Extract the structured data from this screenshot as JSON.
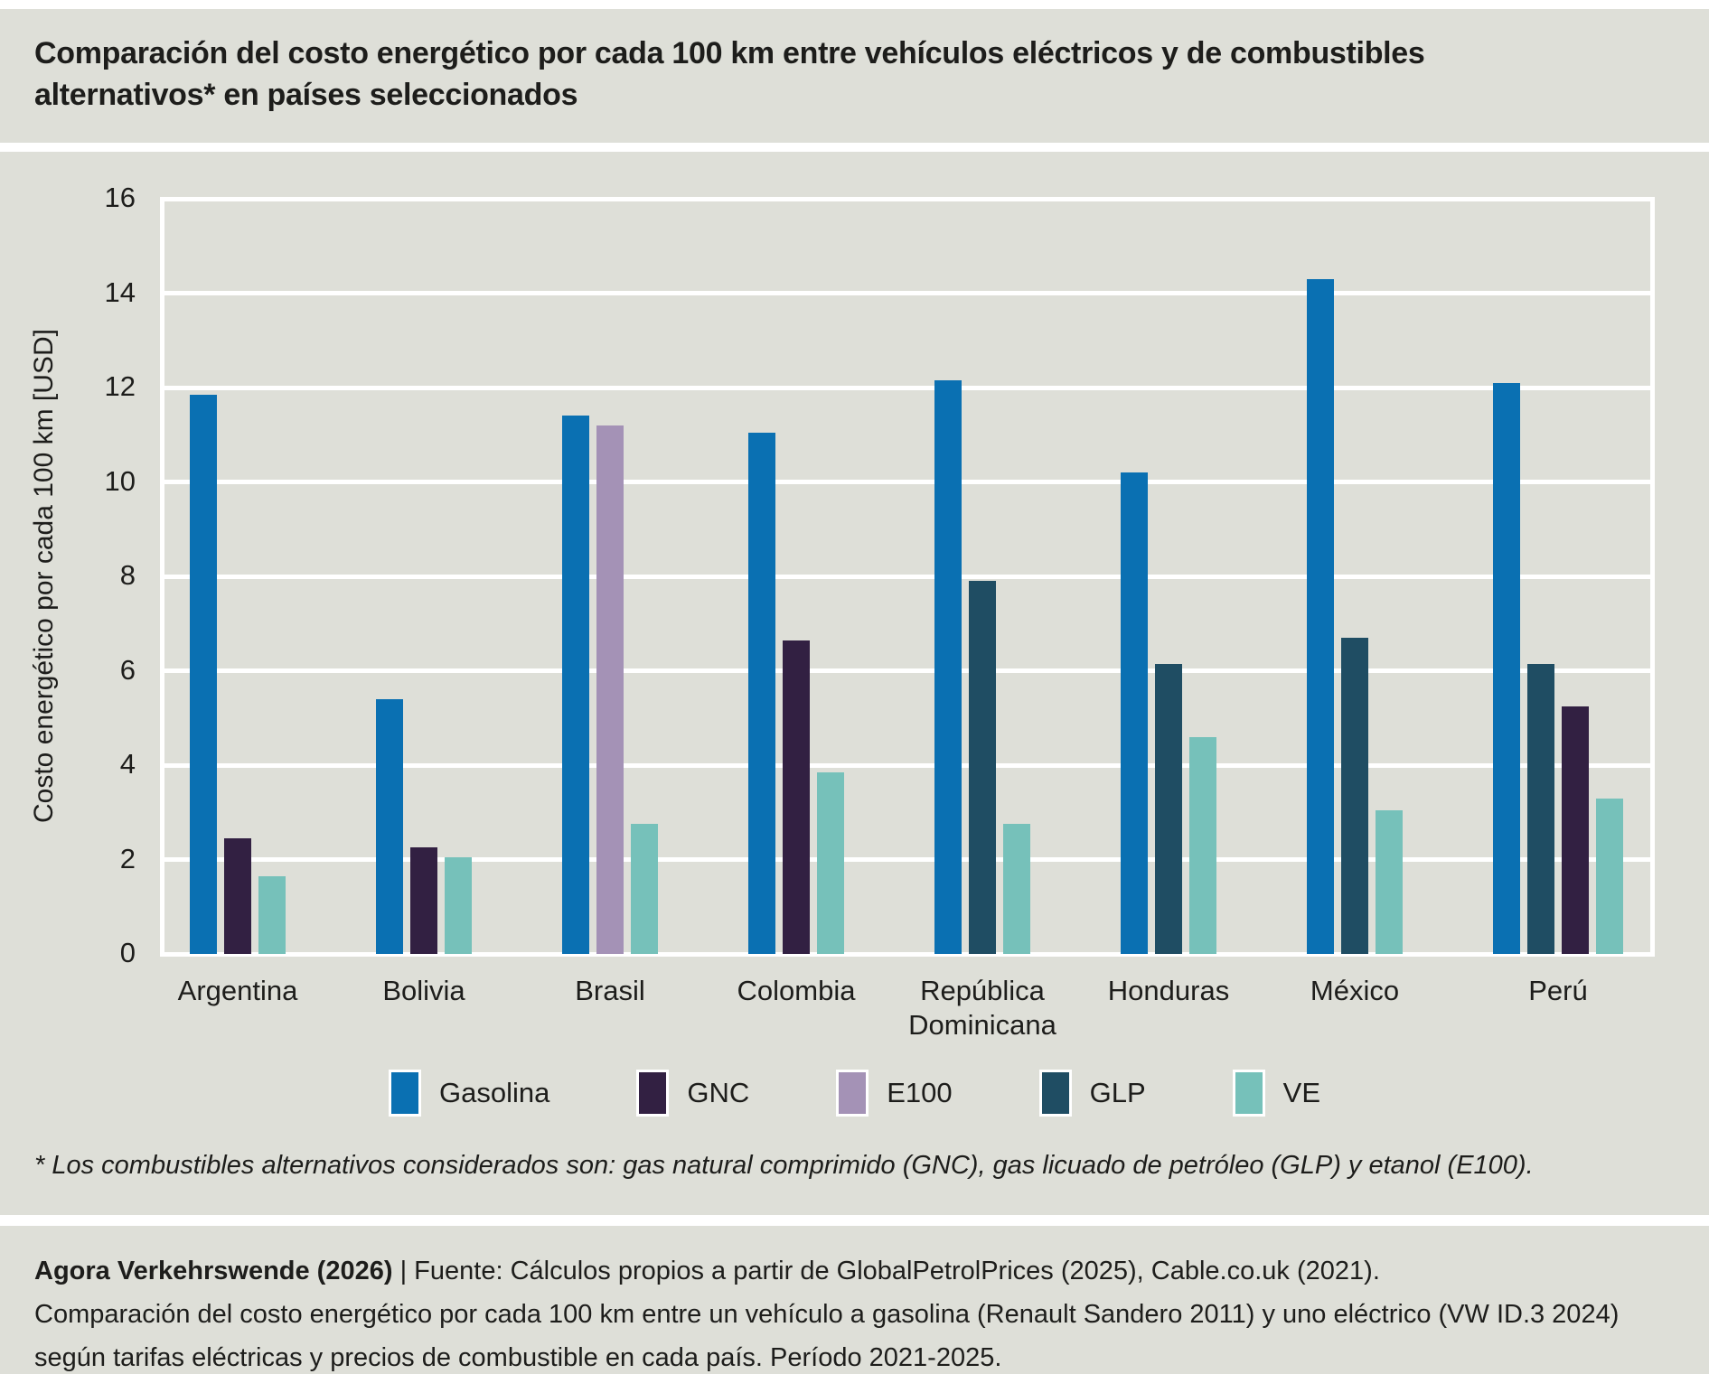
{
  "chart_data": {
    "type": "bar",
    "title": "Comparación del costo energético por cada 100 km entre vehículos eléctricos y de combustibles alternativos* en países seleccionados",
    "ylabel": "Costo energético por cada 100 km [USD]",
    "xlabel": "",
    "ylim": [
      0,
      16
    ],
    "yticks": [
      0,
      2,
      4,
      6,
      8,
      10,
      12,
      14,
      16
    ],
    "grid": "horizontal-white",
    "legend_position": "bottom-center",
    "legend": [
      "Gasolina",
      "GNC",
      "E100",
      "GLP",
      "VE"
    ],
    "series_colors": {
      "Gasolina": "#0a70b2",
      "GNC": "#322042",
      "E100": "#a492b6",
      "GLP": "#1f4d63",
      "VE": "#76c1ba"
    },
    "categories": [
      "Argentina",
      "Bolivia",
      "Brasil",
      "Colombia",
      "República Dominicana",
      "Honduras",
      "México",
      "Perú"
    ],
    "groups": [
      {
        "country": "Argentina",
        "bars": [
          {
            "series": "Gasolina",
            "value": 11.85
          },
          {
            "series": "GNC",
            "value": 2.45
          },
          {
            "series": "VE",
            "value": 1.65
          }
        ]
      },
      {
        "country": "Bolivia",
        "bars": [
          {
            "series": "Gasolina",
            "value": 5.4
          },
          {
            "series": "GNC",
            "value": 2.25
          },
          {
            "series": "VE",
            "value": 2.05
          }
        ]
      },
      {
        "country": "Brasil",
        "bars": [
          {
            "series": "Gasolina",
            "value": 11.4
          },
          {
            "series": "E100",
            "value": 11.2
          },
          {
            "series": "VE",
            "value": 2.75
          }
        ]
      },
      {
        "country": "Colombia",
        "bars": [
          {
            "series": "Gasolina",
            "value": 11.05
          },
          {
            "series": "GNC",
            "value": 6.65
          },
          {
            "series": "VE",
            "value": 3.85
          }
        ]
      },
      {
        "country": "República Dominicana",
        "bars": [
          {
            "series": "Gasolina",
            "value": 12.15
          },
          {
            "series": "GLP",
            "value": 7.9
          },
          {
            "series": "VE",
            "value": 2.75
          }
        ]
      },
      {
        "country": "Honduras",
        "bars": [
          {
            "series": "Gasolina",
            "value": 10.2
          },
          {
            "series": "GLP",
            "value": 6.15
          },
          {
            "series": "VE",
            "value": 4.6
          }
        ]
      },
      {
        "country": "México",
        "bars": [
          {
            "series": "Gasolina",
            "value": 14.3
          },
          {
            "series": "GLP",
            "value": 6.7
          },
          {
            "series": "VE",
            "value": 3.05
          }
        ]
      },
      {
        "country": "Perú",
        "bars": [
          {
            "series": "Gasolina",
            "value": 12.1
          },
          {
            "series": "GLP",
            "value": 6.15
          },
          {
            "series": "GNC",
            "value": 5.25
          },
          {
            "series": "VE",
            "value": 3.3
          }
        ]
      }
    ]
  },
  "footnote": "* Los combustibles alternativos considerados son: gas natural comprimido (GNC), gas licuado de petróleo (GLP) y etanol (E100).",
  "source": {
    "publisher_bold": "Agora Verkehrswende (2026)",
    "line1_rest": " | Fuente: Cálculos propios a partir de GlobalPetrolPrices (2025), Cable.co.uk (2021).",
    "line2": "Comparación del costo energético por cada 100 km entre un vehículo a gasolina (Renault Sandero 2011) y uno eléctrico (VW ID.3 2024)",
    "line3": "según tarifas eléctricas y precios de combustible en cada país. Período 2021-2025."
  },
  "colors": {
    "background_band": "#dedfd8",
    "separator": "#ffffff",
    "text": "#1d1d1b"
  }
}
